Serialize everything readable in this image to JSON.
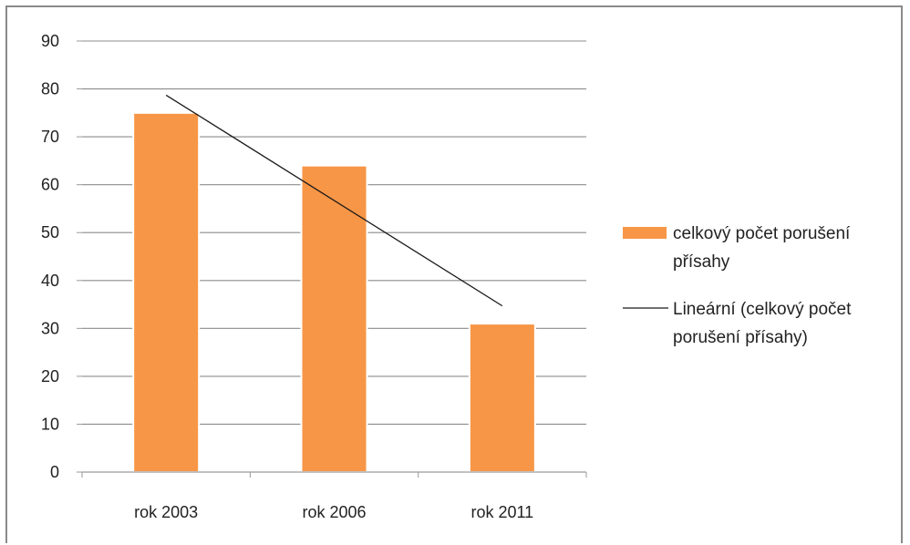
{
  "chart_data": {
    "type": "bar",
    "categories": [
      "rok 2003",
      "rok 2006",
      "rok 2011"
    ],
    "series": [
      {
        "name": "celkový počet porušení přísahy",
        "values": [
          75,
          64,
          31
        ],
        "color": "#f79646"
      }
    ],
    "trendline": {
      "type": "linear",
      "name": "Lineární (celkový počet porušení přísahy)",
      "start": 78.7,
      "end": 34.7,
      "color": "#1a1a1a"
    },
    "ylim": [
      0,
      90
    ],
    "yticks": [
      0,
      10,
      20,
      30,
      40,
      50,
      60,
      70,
      80,
      90
    ],
    "grid": true,
    "legend": {
      "placement": "right",
      "series_lines": [
        "celkový počet porušení",
        "přísahy"
      ],
      "trend_lines": [
        "Lineární (celkový počet",
        "porušení přísahy)"
      ]
    },
    "title": "",
    "xlabel": "",
    "ylabel": ""
  }
}
